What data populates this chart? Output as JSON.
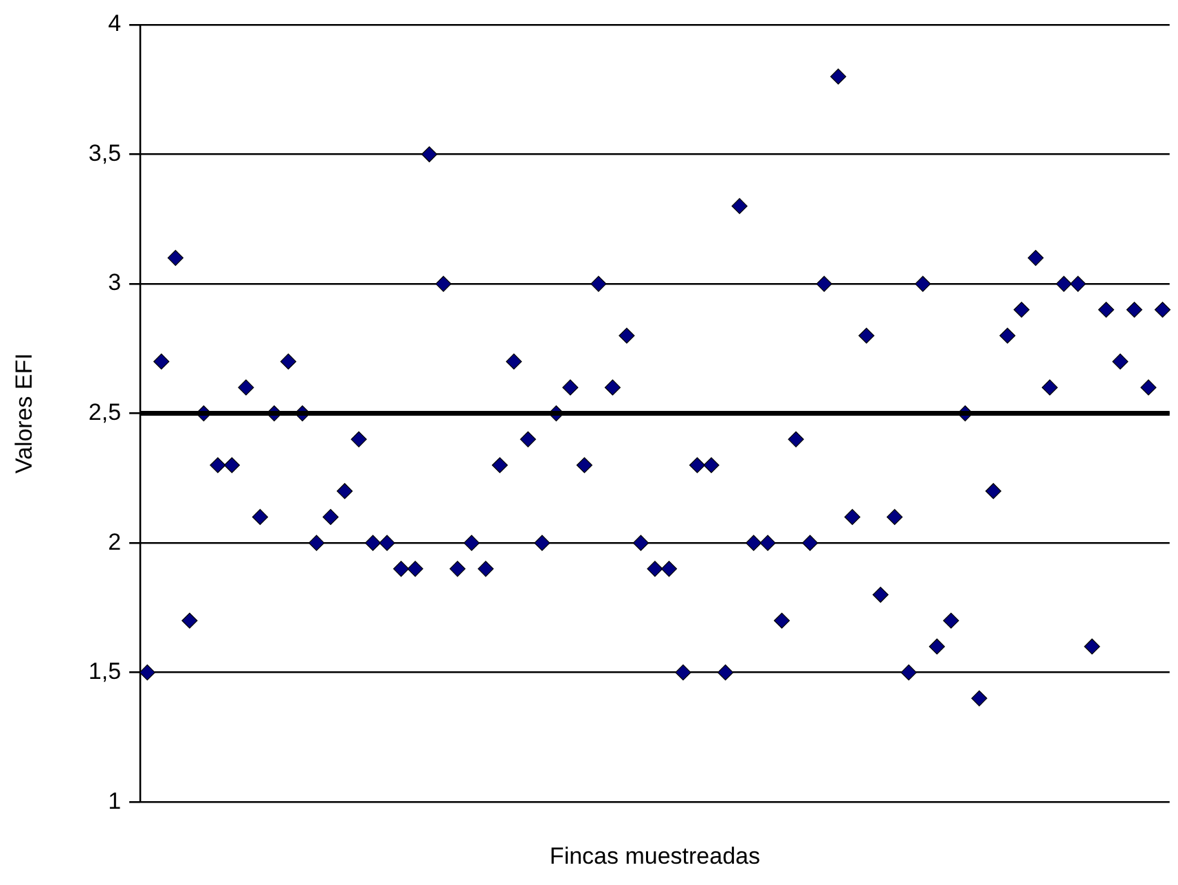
{
  "chart_data": {
    "type": "scatter",
    "xlabel": "Fincas muestreadas",
    "ylabel": "Valores EFI",
    "categories": [
      null,
      null,
      null,
      null,
      null,
      null,
      null,
      null,
      null,
      null,
      null,
      null,
      null,
      null,
      null,
      null,
      null,
      null,
      null,
      null,
      null,
      null,
      null,
      null,
      null,
      null,
      null,
      null,
      null,
      null,
      null,
      null,
      null,
      null,
      null,
      null,
      null,
      null,
      null,
      null,
      null,
      null,
      null,
      null,
      null,
      null,
      null,
      null,
      null,
      null,
      null,
      null,
      null,
      null,
      null,
      null,
      null,
      null,
      null,
      null,
      null,
      null,
      null,
      null,
      null,
      null,
      null,
      null,
      null,
      null,
      null,
      null,
      null
    ],
    "series": [
      {
        "color": "#000080",
        "values": [
          1.5,
          2.7,
          3.1,
          1.7,
          2.5,
          2.3,
          2.3,
          2.6,
          2.1,
          2.5,
          2.7,
          2.5,
          2.0,
          2.1,
          2.2,
          2.4,
          2.0,
          2.0,
          1.9,
          1.9,
          3.5,
          3.0,
          1.9,
          2.0,
          1.9,
          2.3,
          2.7,
          2.4,
          2.0,
          2.5,
          2.6,
          2.3,
          3.0,
          2.6,
          2.8,
          2.0,
          1.9,
          1.9,
          1.5,
          2.3,
          2.3,
          1.5,
          3.3,
          2.0,
          2.0,
          1.7,
          2.4,
          2.0,
          3.0,
          3.8,
          2.1,
          2.8,
          1.8,
          2.1,
          1.5,
          3.0,
          1.6,
          1.7,
          2.5,
          1.4,
          2.2,
          2.8,
          2.9,
          3.1,
          2.6,
          3.0,
          3.0,
          1.6,
          2.9,
          2.7,
          2.9,
          2.6,
          2.9
        ]
      }
    ],
    "ylim": [
      1,
      4
    ],
    "yticks": [
      1,
      {
        "value": 1.5,
        "label": "1,5"
      },
      2,
      {
        "value": 2.5,
        "label": "2,5"
      },
      3,
      {
        "value": 3.5,
        "label": "3,5"
      },
      4
    ],
    "ref_lines": [
      {
        "axis": "y",
        "value": 2.5,
        "color": "#000000"
      }
    ],
    "grid": "y",
    "legend": false,
    "marker": "diamond",
    "tick_labels": "y"
  }
}
